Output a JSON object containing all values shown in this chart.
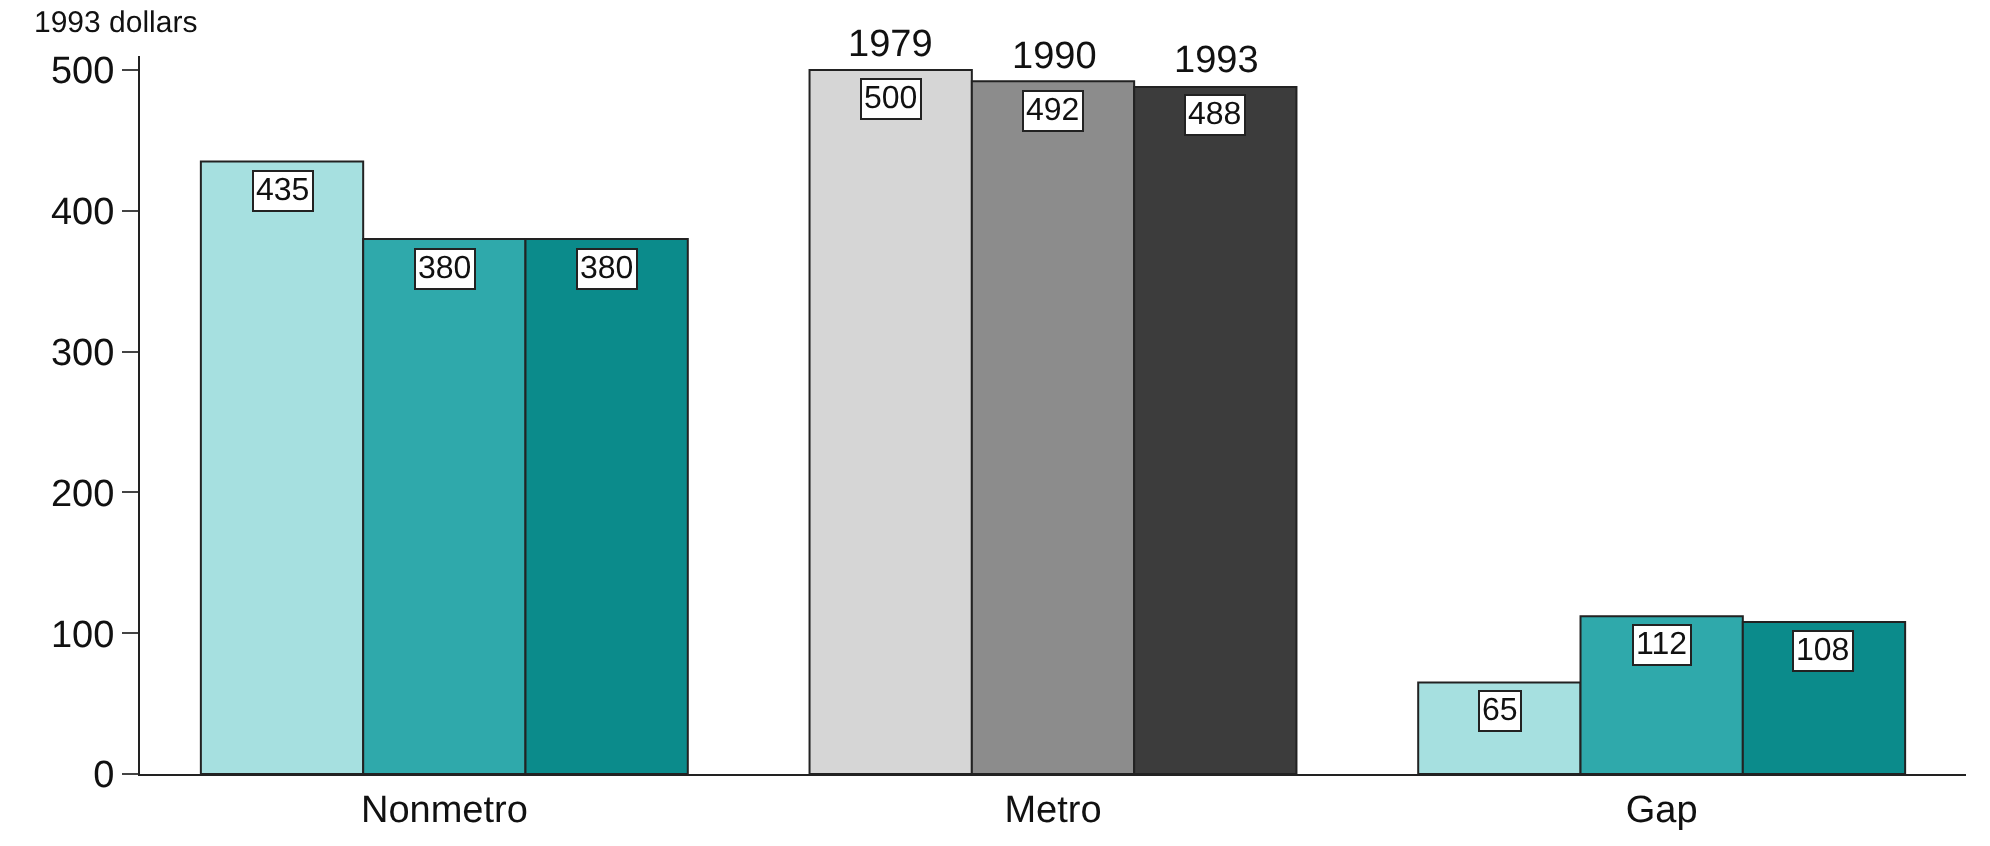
{
  "chart_data": {
    "type": "bar",
    "ylabel": "1993 dollars",
    "categories": [
      "Nonmetro",
      "Metro",
      "Gap"
    ],
    "series": [
      {
        "name": "1979",
        "colors": [
          "#a6e0e0",
          "#d6d6d6",
          "#a6e0e0"
        ],
        "values": [
          435,
          500,
          65
        ]
      },
      {
        "name": "1990",
        "colors": [
          "#2fa9ab",
          "#8c8c8c",
          "#2fa9ab"
        ],
        "values": [
          380,
          492,
          112
        ]
      },
      {
        "name": "1993",
        "colors": [
          "#0b8b8b",
          "#3c3c3c",
          "#0b8b8b"
        ],
        "values": [
          380,
          488,
          108
        ]
      }
    ],
    "ylim": [
      0,
      510
    ],
    "yticks": [
      0,
      100,
      200,
      300,
      400,
      500
    ],
    "data_labels": true,
    "legend": false,
    "grid": false
  }
}
